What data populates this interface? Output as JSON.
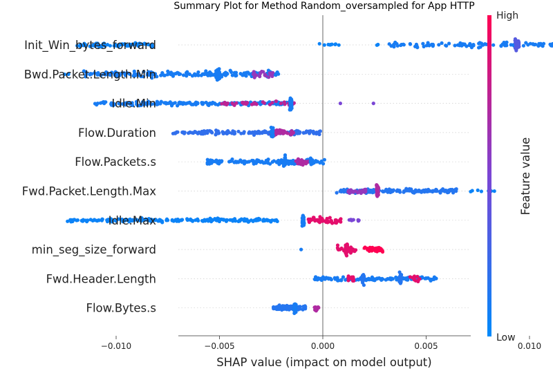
{
  "chart_data": {
    "type": "scatter",
    "subtype": "shap-beeswarm",
    "title": "Summary Plot for Method Random_oversampled for App HTTP",
    "xlabel": "SHAP value (impact on model output)",
    "xlim": [
      -0.014,
      0.0143
    ],
    "xticks": [
      {
        "value": -0.01,
        "label": "−0.010"
      },
      {
        "value": -0.005,
        "label": "−0.005"
      },
      {
        "value": 0.0,
        "label": "0.000"
      },
      {
        "value": 0.005,
        "label": "0.005"
      },
      {
        "value": 0.01,
        "label": "0.010"
      }
    ],
    "colorbar": {
      "label": "Feature value",
      "high": "High",
      "low": "Low",
      "low_color": "#008afb",
      "high_color": "#ff0052"
    },
    "zero_line": true,
    "features": [
      {
        "name": "Init_Win_bytes_forward",
        "clusters": [
          {
            "min": -0.0119,
            "max": -0.0082,
            "count": 65,
            "spread": 0.35,
            "color": 0.05
          },
          {
            "min": -0.0005,
            "max": 0.0008,
            "count": 10,
            "spread": 0.2,
            "color": 0.05
          },
          {
            "min": 0.0026,
            "max": 0.0027,
            "count": 2,
            "spread": 0.1,
            "color": 0.05
          },
          {
            "min": 0.0032,
            "max": 0.0125,
            "count": 120,
            "spread": 0.45,
            "color": 0.1
          },
          {
            "min": 0.0093,
            "max": 0.0095,
            "count": 40,
            "spread": 1.0,
            "color": 0.35
          }
        ]
      },
      {
        "name": "Bwd.Packet.Length.Min",
        "clusters": [
          {
            "min": -0.0125,
            "max": -0.0122,
            "count": 3,
            "spread": 0.15,
            "color": 0.05
          },
          {
            "min": -0.0116,
            "max": -0.0021,
            "count": 170,
            "spread": 0.55,
            "color": 0.1
          },
          {
            "min": -0.0052,
            "max": -0.005,
            "count": 28,
            "spread": 1.0,
            "color": 0.1
          },
          {
            "min": -0.0034,
            "max": -0.0024,
            "count": 25,
            "spread": 0.6,
            "color": 0.6
          }
        ]
      },
      {
        "name": "Idle.Min",
        "clusters": [
          {
            "min": -0.0111,
            "max": -0.0016,
            "count": 190,
            "spread": 0.35,
            "color": 0.1
          },
          {
            "min": -0.0049,
            "max": -0.0013,
            "count": 35,
            "spread": 0.35,
            "color": 0.75
          },
          {
            "min": -0.0016,
            "max": -0.0015,
            "count": 30,
            "spread": 1.0,
            "color": 0.1
          },
          {
            "min": 0.0008,
            "max": 0.0009,
            "count": 1,
            "spread": 0.0,
            "color": 0.5
          },
          {
            "min": 0.0024,
            "max": 0.0025,
            "count": 1,
            "spread": 0.0,
            "color": 0.5
          }
        ]
      },
      {
        "name": "Flow.Duration",
        "clusters": [
          {
            "min": -0.0073,
            "max": -0.0001,
            "count": 140,
            "spread": 0.35,
            "color": 0.2
          },
          {
            "min": -0.0025,
            "max": -0.0012,
            "count": 40,
            "spread": 0.5,
            "color": 0.7
          },
          {
            "min": -0.0025,
            "max": -0.0024,
            "count": 30,
            "spread": 1.0,
            "color": 0.1
          }
        ]
      },
      {
        "name": "Flow.Packets.s",
        "clusters": [
          {
            "min": -0.0056,
            "max": 0.0001,
            "count": 120,
            "spread": 0.45,
            "color": 0.1
          },
          {
            "min": -0.0013,
            "max": -0.0006,
            "count": 25,
            "spread": 0.5,
            "color": 0.7
          },
          {
            "min": -0.0019,
            "max": -0.0018,
            "count": 25,
            "spread": 1.0,
            "color": 0.1
          },
          {
            "min": -0.0006,
            "max": -0.0005,
            "count": 12,
            "spread": 0.8,
            "color": 0.1
          }
        ]
      },
      {
        "name": "Fwd.Packet.Length.Max",
        "clusters": [
          {
            "min": 0.0005,
            "max": 0.0065,
            "count": 150,
            "spread": 0.35,
            "color": 0.15
          },
          {
            "min": 0.0012,
            "max": 0.0022,
            "count": 25,
            "spread": 0.4,
            "color": 0.6
          },
          {
            "min": 0.0026,
            "max": 0.0027,
            "count": 35,
            "spread": 1.0,
            "color": 0.7
          },
          {
            "min": 0.0071,
            "max": 0.0085,
            "count": 8,
            "spread": 0.15,
            "color": 0.05
          }
        ]
      },
      {
        "name": "Idle.Max",
        "clusters": [
          {
            "min": -0.0124,
            "max": -0.0022,
            "count": 200,
            "spread": 0.3,
            "color": 0.05
          },
          {
            "min": -0.001,
            "max": -0.0009,
            "count": 35,
            "spread": 1.0,
            "color": 0.1
          },
          {
            "min": -0.0007,
            "max": 0.0009,
            "count": 50,
            "spread": 0.6,
            "color": 0.9
          },
          {
            "min": 0.0012,
            "max": 0.0018,
            "count": 10,
            "spread": 0.3,
            "color": 0.5
          }
        ]
      },
      {
        "name": "min_seg_size_forward",
        "clusters": [
          {
            "min": -0.0011,
            "max": -0.001,
            "count": 1,
            "spread": 0.0,
            "color": 0.1
          },
          {
            "min": 0.0007,
            "max": 0.0016,
            "count": 35,
            "spread": 0.6,
            "color": 0.9
          },
          {
            "min": 0.0011,
            "max": 0.0012,
            "count": 35,
            "spread": 1.0,
            "color": 0.9
          },
          {
            "min": 0.002,
            "max": 0.0029,
            "count": 55,
            "spread": 0.4,
            "color": 1.0
          }
        ]
      },
      {
        "name": "Fwd.Header.Length",
        "clusters": [
          {
            "min": -0.0004,
            "max": 0.0055,
            "count": 130,
            "spread": 0.35,
            "color": 0.1
          },
          {
            "min": 0.0012,
            "max": 0.0015,
            "count": 12,
            "spread": 0.5,
            "color": 0.9
          },
          {
            "min": 0.0042,
            "max": 0.0047,
            "count": 10,
            "spread": 0.6,
            "color": 0.9
          },
          {
            "min": 0.0019,
            "max": 0.002,
            "count": 25,
            "spread": 0.9,
            "color": 0.15
          },
          {
            "min": 0.0037,
            "max": 0.0038,
            "count": 30,
            "spread": 1.1,
            "color": 0.15
          }
        ]
      },
      {
        "name": "Flow.Bytes.s",
        "clusters": [
          {
            "min": -0.0024,
            "max": -0.0008,
            "count": 90,
            "spread": 0.4,
            "color": 0.15
          },
          {
            "min": -0.0004,
            "max": -0.0002,
            "count": 12,
            "spread": 0.5,
            "color": 0.7
          },
          {
            "min": -0.0014,
            "max": -0.0013,
            "count": 35,
            "spread": 1.0,
            "color": 0.1
          }
        ]
      }
    ]
  }
}
